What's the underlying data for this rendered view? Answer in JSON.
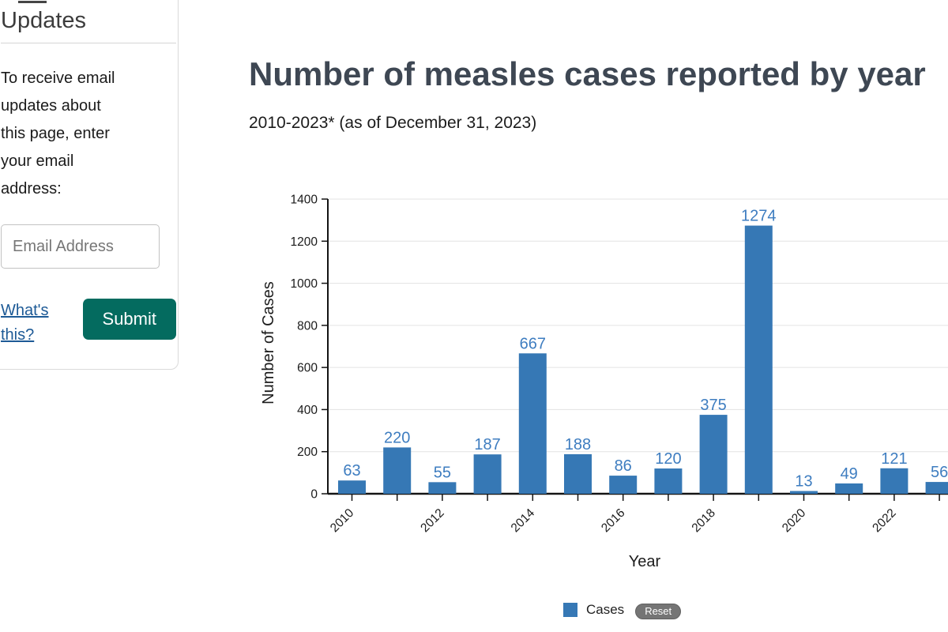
{
  "sidebar": {
    "heading": "Updates",
    "description": "To receive email\nupdates about\nthis page, enter\nyour email\naddress:",
    "email_placeholder": "Email Address",
    "whats_this_label": "What's this?",
    "submit_label": "Submit"
  },
  "header": {
    "title": "Number of measles cases reported by year",
    "subtitle": "2010-2023* (as of December 31, 2023)"
  },
  "chart_data": {
    "type": "bar",
    "title": "Number of measles cases reported by year",
    "subtitle": "2010-2023* (as of December 31, 2023)",
    "categories": [
      "2010",
      "2011",
      "2012",
      "2013",
      "2014",
      "2015",
      "2016",
      "2017",
      "2018",
      "2019",
      "2020",
      "2021",
      "2022",
      "2023"
    ],
    "values": [
      63,
      220,
      55,
      187,
      667,
      188,
      86,
      120,
      375,
      1274,
      13,
      49,
      121,
      56
    ],
    "xlabel": "Year",
    "ylabel": "Number of Cases",
    "ylim": [
      0,
      1400
    ],
    "ytick_interval": 200,
    "ytick_labels": [
      "0",
      "200",
      "400",
      "600",
      "800",
      "1000",
      "1200",
      "1400"
    ],
    "xtick_labels_shown": [
      "2010",
      "2012",
      "2014",
      "2016",
      "2018",
      "2020",
      "2022"
    ],
    "grid": true,
    "legend_position": "bottom",
    "legend_label": "Cases",
    "reset_label": "Reset"
  },
  "colors": {
    "bar": "#3678b5",
    "value_label": "#3e7dc0",
    "axis": "#141414",
    "gridline": "#e3e3e3",
    "submit_bg": "#046b5f",
    "link": "#1d5a96",
    "reset_bg": "#757575",
    "reset_border": "#606060"
  }
}
